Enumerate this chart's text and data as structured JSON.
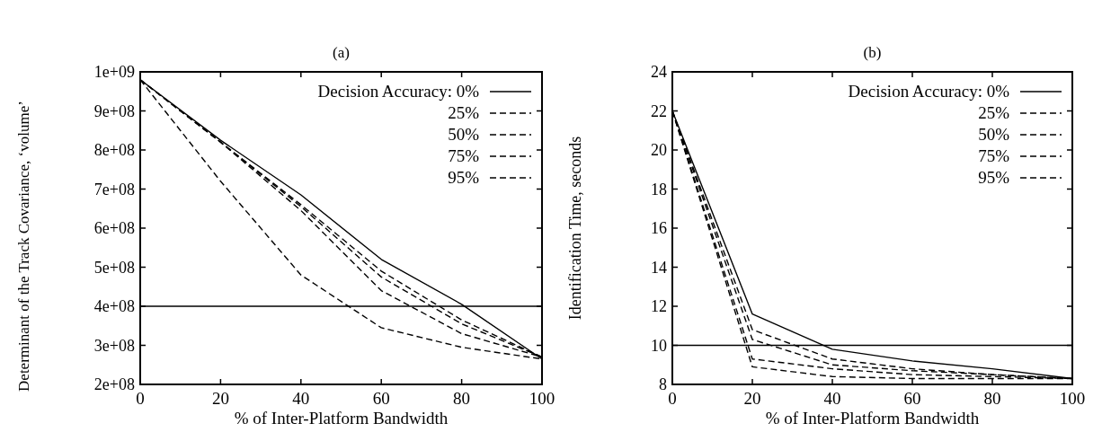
{
  "chart_data": [
    {
      "type": "line",
      "title": "(a)",
      "xlabel": "% of Inter-Platform Bandwidth",
      "ylabel": "Determinant of the Track Covariance, ‘volume’",
      "x": [
        0,
        20,
        40,
        60,
        80,
        100
      ],
      "xlim": [
        0,
        100
      ],
      "xticks": [
        0,
        20,
        40,
        60,
        80,
        100
      ],
      "ylim": [
        200000000,
        1000000000
      ],
      "yticks": [
        {
          "value": 200000000,
          "label": "2e+08"
        },
        {
          "value": 300000000,
          "label": "3e+08"
        },
        {
          "value": 400000000,
          "label": "4e+08"
        },
        {
          "value": 500000000,
          "label": "5e+08"
        },
        {
          "value": 600000000,
          "label": "6e+08"
        },
        {
          "value": 700000000,
          "label": "7e+08"
        },
        {
          "value": 800000000,
          "label": "8e+08"
        },
        {
          "value": 900000000,
          "label": "9e+08"
        },
        {
          "value": 1000000000,
          "label": "1e+09"
        }
      ],
      "legend": "top right",
      "grid": false,
      "marker": "none",
      "ref_lines": [
        {
          "axis": "y",
          "value": 400000000,
          "color": "#000000"
        }
      ],
      "series": [
        {
          "name": "Decision Accuracy: 0%",
          "color": "#000000",
          "line_style": "solid",
          "values": [
            980000000,
            825000000,
            685000000,
            520000000,
            405000000,
            265000000
          ]
        },
        {
          "name": "25%",
          "color": "#000000",
          "line_style": "dashed",
          "values": [
            980000000,
            820000000,
            660000000,
            490000000,
            365000000,
            270000000
          ]
        },
        {
          "name": "50%",
          "color": "#000000",
          "line_style": "dashed",
          "values": [
            980000000,
            820000000,
            655000000,
            475000000,
            355000000,
            270000000
          ]
        },
        {
          "name": "75%",
          "color": "#000000",
          "line_style": "dashed",
          "values": [
            980000000,
            820000000,
            645000000,
            440000000,
            330000000,
            270000000
          ]
        },
        {
          "name": "95%",
          "color": "#000000",
          "line_style": "dashed",
          "values": [
            980000000,
            720000000,
            480000000,
            345000000,
            295000000,
            265000000
          ]
        }
      ]
    },
    {
      "type": "line",
      "title": "(b)",
      "xlabel": "% of Inter-Platform Bandwidth",
      "ylabel": "Identification Time, seconds",
      "x": [
        0,
        20,
        40,
        60,
        80,
        100
      ],
      "xlim": [
        0,
        100
      ],
      "xticks": [
        0,
        20,
        40,
        60,
        80,
        100
      ],
      "ylim": [
        8,
        24
      ],
      "yticks": [
        8,
        10,
        12,
        14,
        16,
        18,
        20,
        22,
        24
      ],
      "legend": "top right",
      "grid": false,
      "marker": "none",
      "ref_lines": [
        {
          "axis": "y",
          "value": 10,
          "color": "#000000"
        }
      ],
      "series": [
        {
          "name": "Decision Accuracy: 0%",
          "color": "#000000",
          "line_style": "solid",
          "values": [
            22,
            11.6,
            9.8,
            9.2,
            8.8,
            8.3
          ]
        },
        {
          "name": "25%",
          "color": "#000000",
          "line_style": "dashed",
          "values": [
            22,
            10.8,
            9.3,
            8.8,
            8.5,
            8.3
          ]
        },
        {
          "name": "50%",
          "color": "#000000",
          "line_style": "dashed",
          "values": [
            22,
            10.3,
            9.0,
            8.7,
            8.5,
            8.3
          ]
        },
        {
          "name": "75%",
          "color": "#000000",
          "line_style": "dashed",
          "values": [
            22,
            9.3,
            8.8,
            8.5,
            8.4,
            8.3
          ]
        },
        {
          "name": "95%",
          "color": "#000000",
          "line_style": "dashed",
          "values": [
            22,
            8.9,
            8.4,
            8.3,
            8.3,
            8.3
          ]
        }
      ]
    }
  ]
}
